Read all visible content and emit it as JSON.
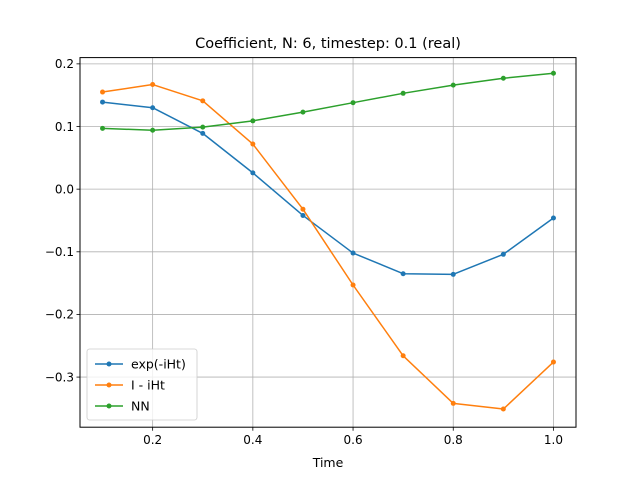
{
  "chart_data": {
    "type": "line",
    "title": "Coefficient, N: 6, timestep: 0.1 (real)",
    "xlabel": "Time",
    "ylabel": "",
    "xlim": [
      0.055,
      1.045
    ],
    "ylim": [
      -0.38,
      0.21
    ],
    "xticks": [
      0.2,
      0.4,
      0.6,
      0.8,
      1.0
    ],
    "xtick_labels": [
      "0.2",
      "0.4",
      "0.6",
      "0.8",
      "1.0"
    ],
    "yticks": [
      -0.3,
      -0.2,
      -0.1,
      0.0,
      0.1,
      0.2
    ],
    "ytick_labels": [
      "−0.3",
      "−0.2",
      "−0.1",
      "0.0",
      "0.1",
      "0.2"
    ],
    "grid": true,
    "legend_position": "lower-left",
    "x": [
      0.1,
      0.2,
      0.3,
      0.4,
      0.5,
      0.6,
      0.7,
      0.8,
      0.9,
      1.0
    ],
    "series": [
      {
        "name": "exp(-iHt)",
        "color": "#1f77b4",
        "values": [
          0.139,
          0.13,
          0.089,
          0.026,
          -0.042,
          -0.102,
          -0.135,
          -0.136,
          -0.104,
          -0.046
        ]
      },
      {
        "name": "I - iHt",
        "color": "#ff7f0e",
        "values": [
          0.155,
          0.167,
          0.141,
          0.072,
          -0.032,
          -0.153,
          -0.266,
          -0.342,
          -0.351,
          -0.276
        ]
      },
      {
        "name": "NN",
        "color": "#2ca02c",
        "values": [
          0.097,
          0.094,
          0.099,
          0.109,
          0.123,
          0.138,
          0.153,
          0.166,
          0.177,
          0.185
        ]
      }
    ]
  }
}
